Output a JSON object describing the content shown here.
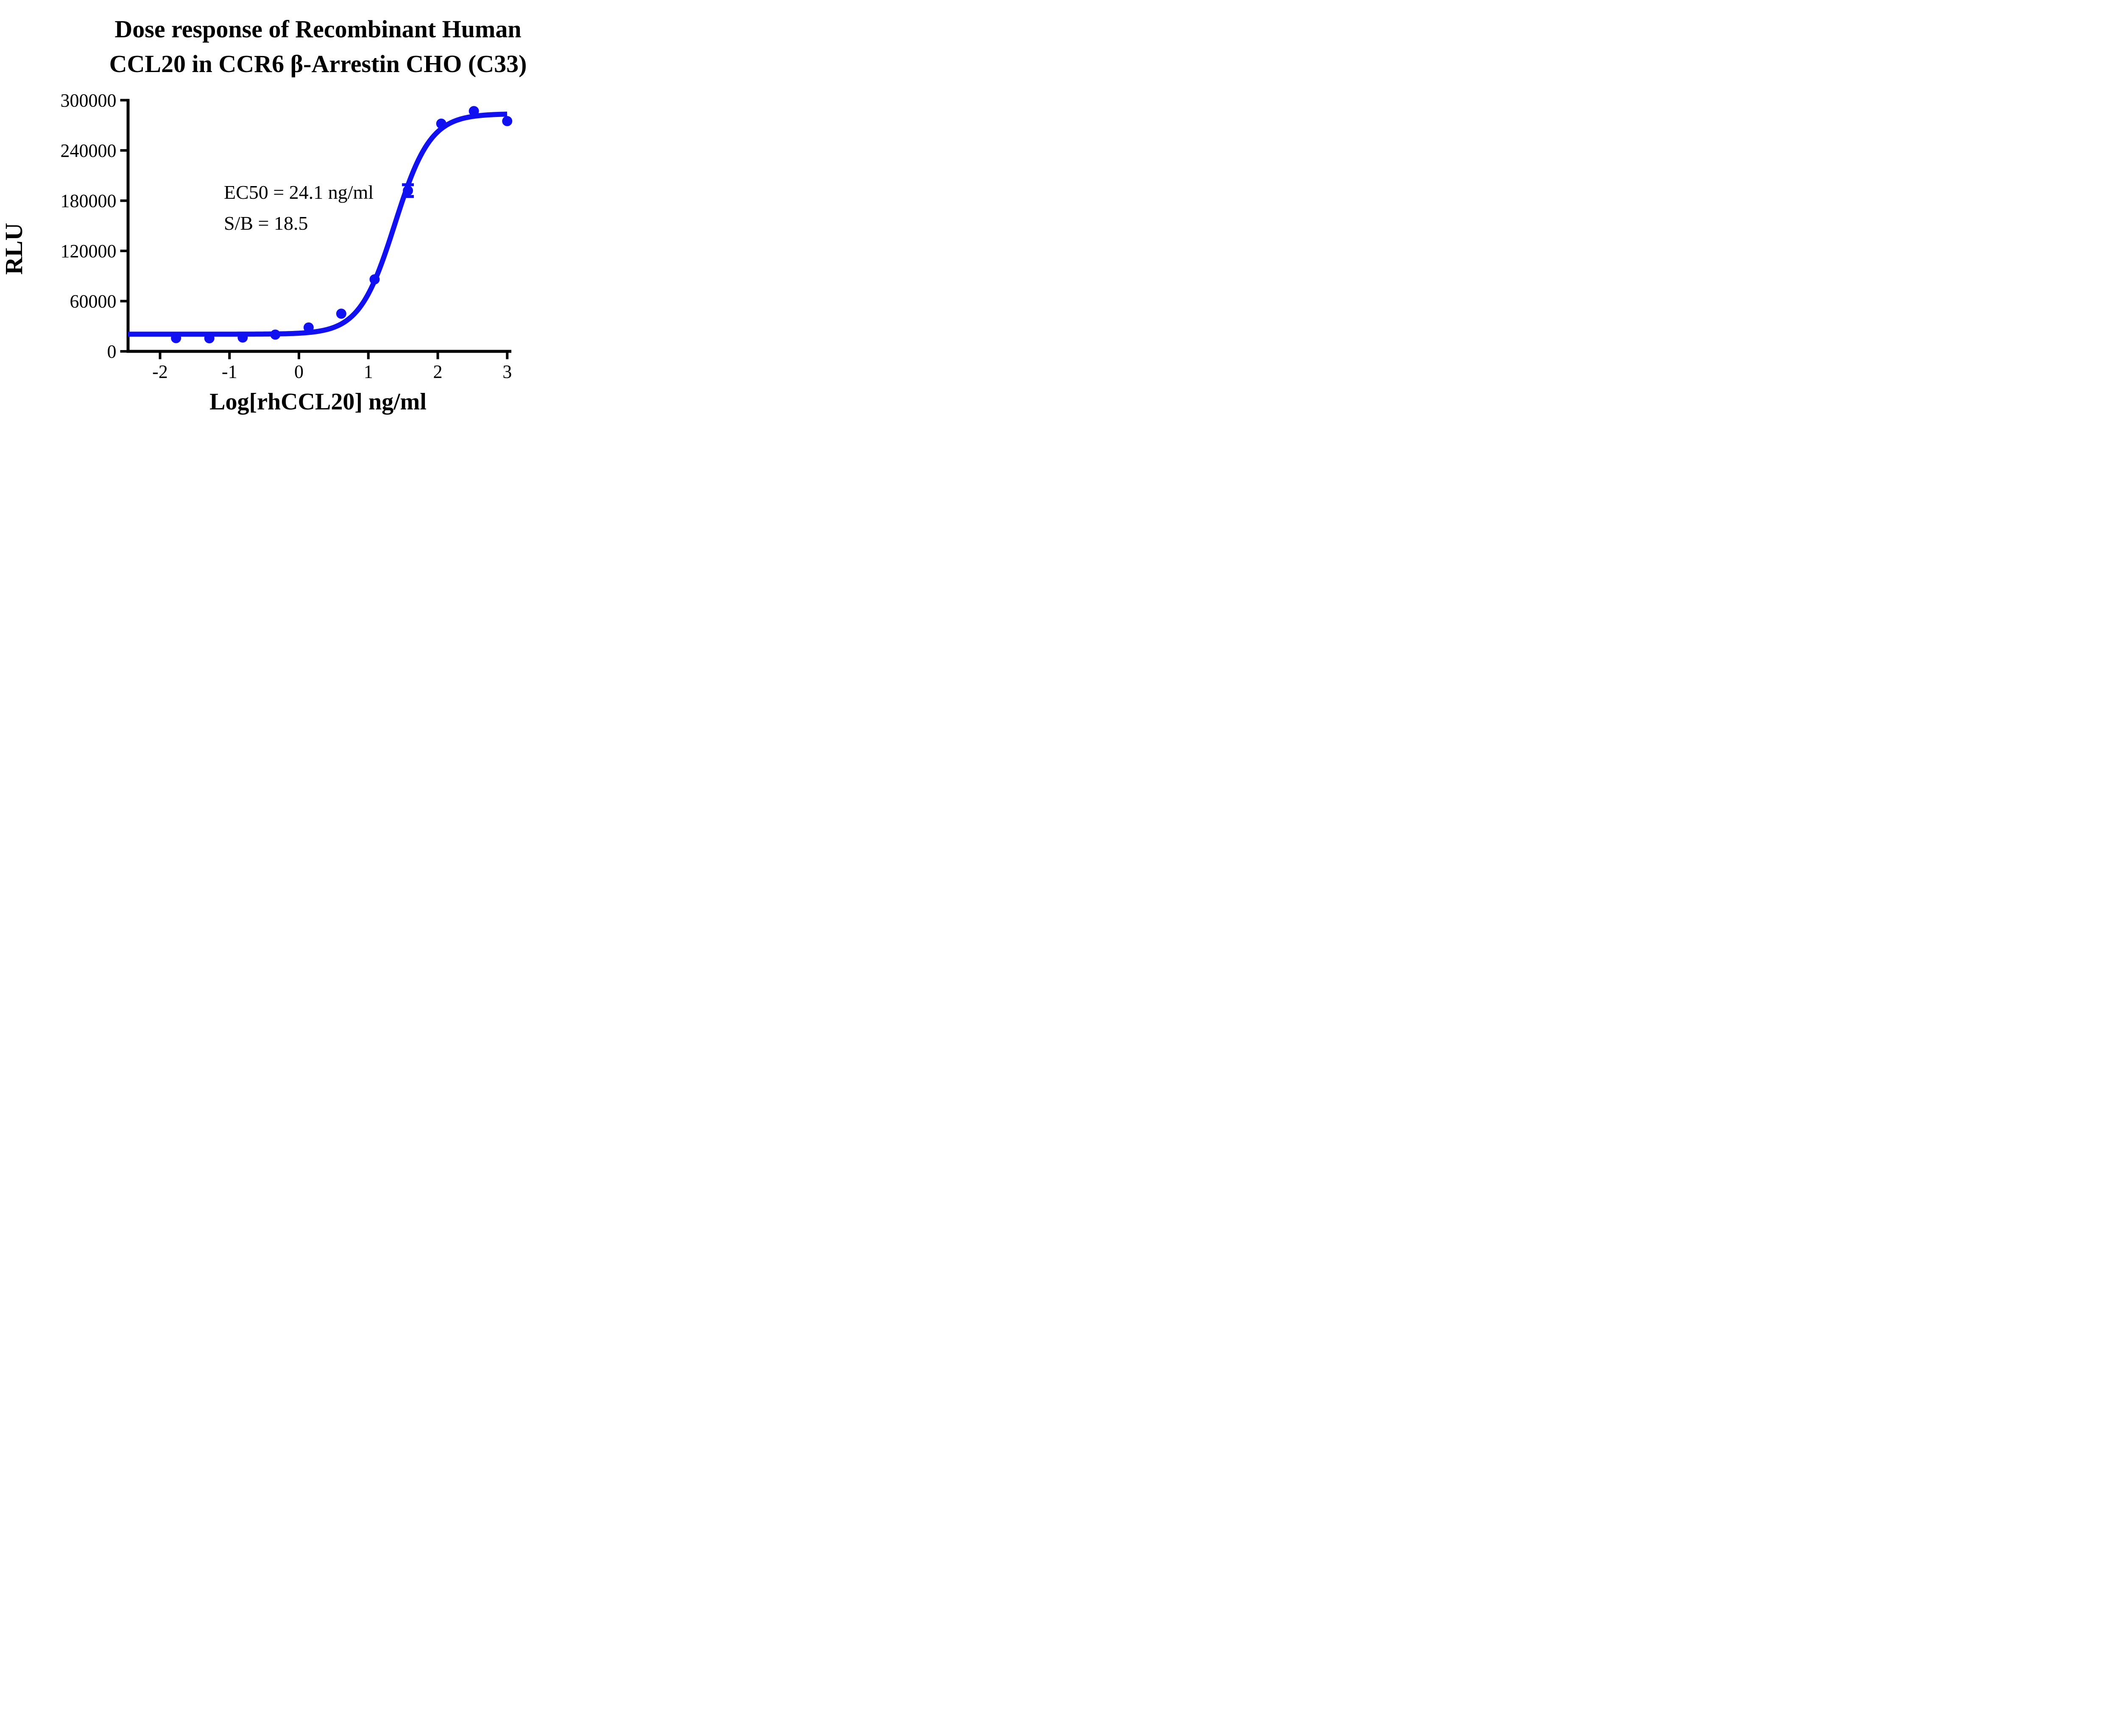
{
  "title": {
    "line1": "Dose response of Recombinant Human",
    "line2": "CCL20 in CCR6 β-Arrestin CHO (C33)"
  },
  "annotation": {
    "ec50_label": "EC50 = 24.1 ng/ml",
    "sb_label": "S/B = 18.5"
  },
  "colors": {
    "curve": "#1010f0",
    "axis": "#000000",
    "text": "#000000",
    "background": "#ffffff"
  },
  "chart_data": {
    "type": "scatter",
    "title": "Dose response of Recombinant Human CCL20 in CCR6 β-Arrestin CHO (C33)",
    "xlabel": "Log[rhCCL20] ng/ml",
    "ylabel": "RLU",
    "xlim": [
      -2.46,
      3.06
    ],
    "ylim": [
      0,
      300000
    ],
    "x_ticks": [
      -2,
      -1,
      0,
      1,
      2,
      3
    ],
    "y_ticks": [
      0,
      60000,
      120000,
      180000,
      240000,
      300000
    ],
    "grid": false,
    "legend": "none",
    "series": [
      {
        "name": "rhCCL20",
        "color": "#1010f0",
        "marker": "circle",
        "x": [
          -1.77,
          -1.29,
          -0.81,
          -0.34,
          0.14,
          0.61,
          1.09,
          1.57,
          2.05,
          2.52,
          3.0
        ],
        "y": [
          15800,
          15600,
          16500,
          20000,
          28500,
          45000,
          86000,
          192000,
          272000,
          287000,
          275000
        ],
        "y_error": [
          0,
          0,
          0,
          0,
          0,
          0,
          0,
          7000,
          0,
          0,
          0
        ]
      }
    ],
    "fit_curve": {
      "model": "4PL-logistic",
      "bottom": 20500,
      "top": 283800,
      "log_ec50": 1.382,
      "hill_slope": 1.7,
      "x_start": -2.461,
      "x_end": 3.0
    },
    "ec50_ng_ml": 24.1,
    "signal_to_background": 18.5
  }
}
